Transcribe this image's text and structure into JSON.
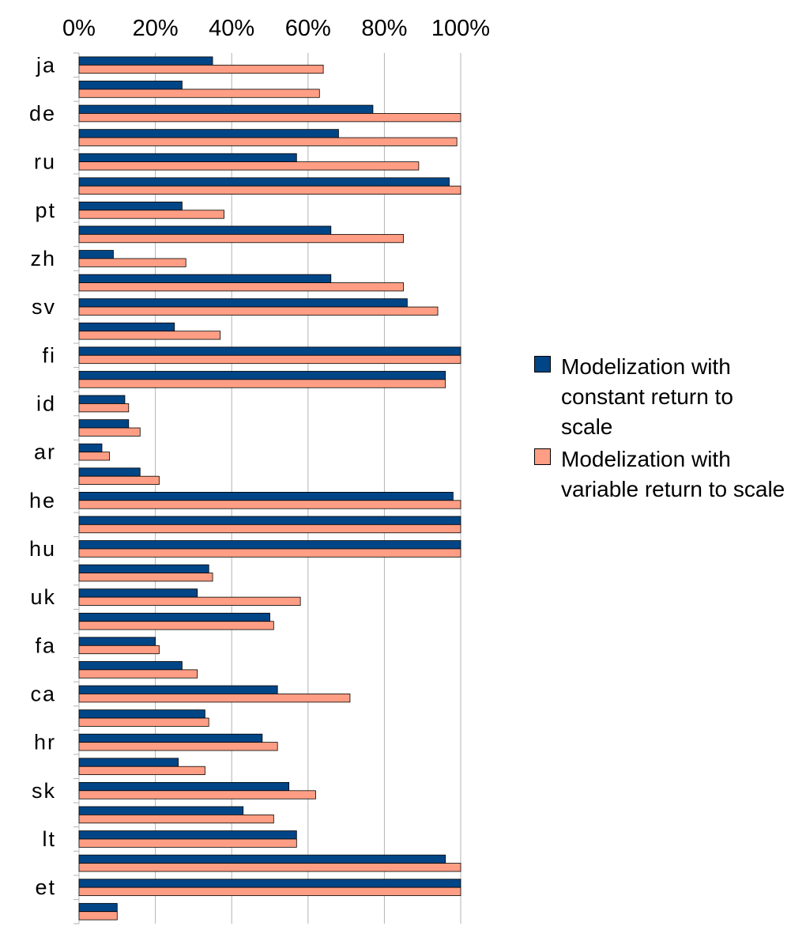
{
  "chart_data": {
    "type": "bar",
    "orientation": "horizontal",
    "categories": [
      "ja",
      "",
      "de",
      "",
      "ru",
      "",
      "pt",
      "",
      "zh",
      "",
      "sv",
      "",
      "fi",
      "",
      "id",
      "",
      "ar",
      "",
      "he",
      "",
      "hu",
      "",
      "uk",
      "",
      "fa",
      "",
      "ca",
      "",
      "hr",
      "",
      "sk",
      "",
      "lt",
      "",
      "et",
      ""
    ],
    "series": [
      {
        "name": "Modelization with constant return to scale",
        "color": "#004586",
        "values": [
          35,
          27,
          77,
          68,
          57,
          97,
          27,
          66,
          9,
          66,
          86,
          25,
          100,
          96,
          12,
          13,
          6,
          16,
          98,
          100,
          100,
          34,
          31,
          50,
          20,
          27,
          52,
          33,
          48,
          26,
          55,
          43,
          57,
          96,
          100,
          10
        ]
      },
      {
        "name": "Modelization with variable return to scale",
        "color": "#ff9e84",
        "values": [
          64,
          63,
          100,
          99,
          89,
          100,
          38,
          85,
          28,
          85,
          94,
          37,
          100,
          96,
          13,
          16,
          8,
          21,
          100,
          100,
          100,
          35,
          58,
          51,
          21,
          31,
          71,
          34,
          52,
          33,
          62,
          51,
          57,
          100,
          100,
          10
        ]
      }
    ],
    "xaxis": {
      "ticks": [
        "0%",
        "20%",
        "40%",
        "60%",
        "80%",
        "100%"
      ],
      "tick_values": [
        0,
        20,
        40,
        60,
        80,
        100
      ],
      "position": "top"
    },
    "xlim": [
      0,
      100
    ],
    "grid": true,
    "legend_position": "right"
  }
}
